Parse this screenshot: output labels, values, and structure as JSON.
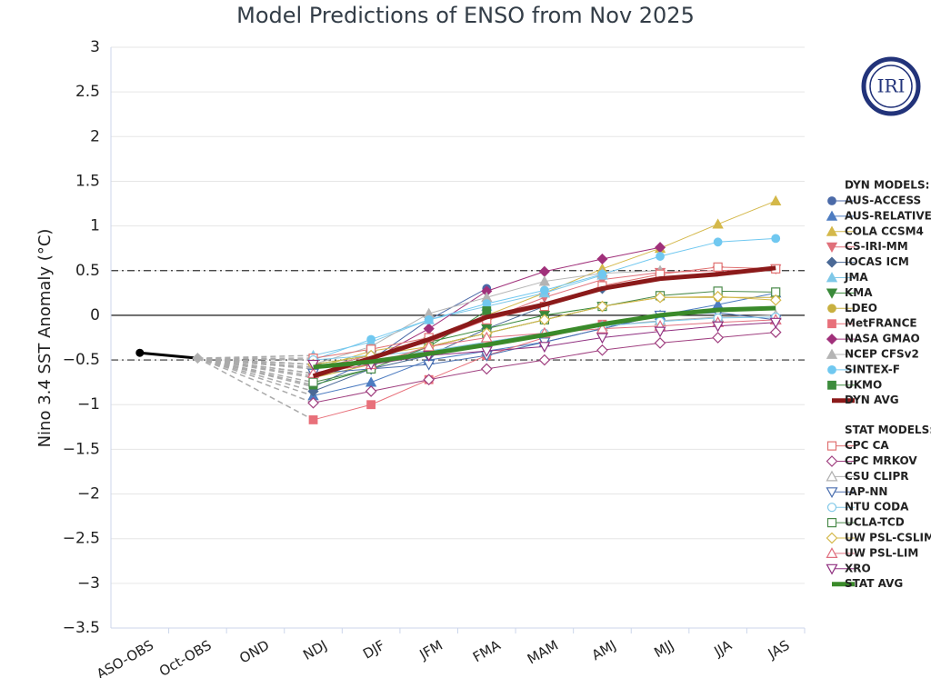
{
  "chart_data": {
    "type": "line",
    "title": "Model Predictions of ENSO from Nov 2025",
    "y_label": "Nino 3.4 SST Anomaly (°C)",
    "logo_text": "IRI",
    "categories": [
      "ASO-OBS",
      "Oct-OBS",
      "OND",
      "NDJ",
      "DJF",
      "JFM",
      "FMA",
      "MAM",
      "AMJ",
      "MJJ",
      "JJA",
      "JAS"
    ],
    "ylim": [
      -3.5,
      3
    ],
    "yticks": [
      3,
      2.5,
      2,
      1.5,
      1,
      0.5,
      0,
      {
        "value": -0.5,
        "label": "−0.5"
      },
      {
        "value": -1,
        "label": "−1"
      },
      {
        "value": -1.5,
        "label": "−1.5"
      },
      {
        "value": -2,
        "label": "−2"
      },
      {
        "value": -2.5,
        "label": "−2.5"
      },
      {
        "value": -3,
        "label": "−3"
      },
      {
        "value": -3.5,
        "label": "−3.5"
      }
    ],
    "grid": true,
    "reference_lines": [
      0.5,
      -0.5
    ],
    "legend_position": "right",
    "observed": {
      "color": "#000000",
      "values": [
        -0.42,
        -0.48,
        null,
        null,
        null,
        null,
        null,
        null,
        null,
        null,
        null,
        null
      ]
    },
    "groups": [
      {
        "title": "DYN MODELS:",
        "series": [
          {
            "name": "AUS-ACCESS",
            "color": "#4b6aa8",
            "marker": "circle",
            "open": false,
            "values": [
              null,
              null,
              null,
              -0.8,
              -0.5,
              -0.05,
              0.3,
              null,
              null,
              null,
              null,
              null
            ]
          },
          {
            "name": "AUS-RELATIVE",
            "color": "#4d7cc1",
            "marker": "triangle",
            "open": false,
            "values": [
              null,
              null,
              null,
              -0.9,
              -0.75,
              -0.5,
              -0.4,
              -0.3,
              -0.15,
              0.0,
              0.12,
              0.25
            ]
          },
          {
            "name": "COLA CCSM4",
            "color": "#d4b84a",
            "marker": "triangle",
            "open": false,
            "values": [
              null,
              null,
              null,
              -0.6,
              -0.4,
              -0.3,
              0.0,
              0.25,
              0.52,
              0.75,
              1.02,
              1.28
            ]
          },
          {
            "name": "CS-IRI-MM",
            "color": "#e0707a",
            "marker": "triangle-down",
            "open": false,
            "values": [
              null,
              null,
              null,
              -0.6,
              -0.45,
              -0.3,
              -0.05,
              0.2,
              0.4,
              0.48,
              0.5,
              0.52
            ]
          },
          {
            "name": "IOCAS ICM",
            "color": "#4a6996",
            "marker": "diamond",
            "open": false,
            "values": [
              null,
              null,
              null,
              -0.85,
              -0.6,
              -0.45,
              -0.15,
              0.1,
              0.3,
              null,
              null,
              null
            ]
          },
          {
            "name": "JMA",
            "color": "#7fc8e8",
            "marker": "triangle",
            "open": false,
            "values": [
              null,
              null,
              null,
              -0.45,
              -0.3,
              -0.05,
              0.1,
              0.25,
              0.45,
              null,
              null,
              null
            ]
          },
          {
            "name": "KMA",
            "color": "#3a8a3a",
            "marker": "triangle-down",
            "open": false,
            "values": [
              null,
              null,
              null,
              -0.55,
              -0.45,
              -0.3,
              -0.15,
              0.0,
              0.1,
              null,
              null,
              null
            ]
          },
          {
            "name": "LDEO",
            "color": "#c8b040",
            "marker": "circle",
            "open": false,
            "values": [
              null,
              null,
              null,
              -0.7,
              -0.55,
              -0.35,
              -0.2,
              -0.05,
              0.1,
              0.2,
              0.2,
              0.2
            ]
          },
          {
            "name": "MetFRANCE",
            "color": "#e8707a",
            "marker": "square",
            "open": false,
            "values": [
              null,
              null,
              null,
              -1.17,
              -1.0,
              -0.72,
              -0.45,
              -0.25,
              -0.1,
              null,
              null,
              null
            ]
          },
          {
            "name": "NASA GMAO",
            "color": "#a0307a",
            "marker": "diamond",
            "open": false,
            "values": [
              null,
              null,
              null,
              -0.65,
              -0.5,
              -0.15,
              0.27,
              0.49,
              0.63,
              0.76,
              null,
              null
            ]
          },
          {
            "name": "NCEP CFSv2",
            "color": "#b4b4b4",
            "marker": "triangle",
            "open": false,
            "values": [
              null,
              null,
              null,
              -0.55,
              -0.35,
              0.02,
              0.2,
              0.38,
              0.47,
              0.5,
              null,
              null
            ]
          },
          {
            "name": "SINTEX-F",
            "color": "#70c8f0",
            "marker": "circle",
            "open": false,
            "values": [
              null,
              null,
              null,
              -0.5,
              -0.27,
              -0.05,
              0.13,
              0.28,
              0.46,
              0.66,
              0.82,
              0.86
            ]
          },
          {
            "name": "UKMO",
            "color": "#3c8c3c",
            "marker": "square",
            "open": false,
            "values": [
              null,
              null,
              null,
              -0.78,
              -0.6,
              -0.35,
              0.05,
              null,
              null,
              null,
              null,
              null
            ]
          },
          {
            "name": "DYN AVG",
            "color": "#8b1a1a",
            "marker": "none",
            "open": false,
            "values": [
              null,
              null,
              null,
              -0.68,
              -0.48,
              -0.27,
              -0.02,
              0.12,
              0.3,
              0.41,
              0.46,
              0.53
            ]
          }
        ]
      },
      {
        "title": "STAT MODELS:",
        "series": [
          {
            "name": "CPC CA",
            "color": "#e07070",
            "marker": "square",
            "open": true,
            "values": [
              null,
              null,
              null,
              -0.48,
              -0.38,
              -0.25,
              -0.05,
              0.1,
              0.33,
              0.46,
              0.54,
              0.52
            ]
          },
          {
            "name": "CPC MRKOV",
            "color": "#a04080",
            "marker": "diamond",
            "open": true,
            "values": [
              null,
              null,
              null,
              -0.98,
              -0.85,
              -0.72,
              -0.6,
              -0.5,
              -0.39,
              -0.31,
              -0.25,
              -0.19
            ]
          },
          {
            "name": "CSU CLIPR",
            "color": "#b0b0b0",
            "marker": "triangle",
            "open": true,
            "values": [
              null,
              null,
              null,
              -0.6,
              -0.5,
              -0.4,
              -0.3,
              -0.2,
              -0.12,
              -0.06,
              -0.02,
              0.0
            ]
          },
          {
            "name": "IAP-NN",
            "color": "#4a6fb0",
            "marker": "triangle-down",
            "open": true,
            "values": [
              null,
              null,
              null,
              -0.65,
              -0.6,
              -0.55,
              -0.45,
              -0.3,
              -0.15,
              0.0,
              0.03,
              -0.05
            ]
          },
          {
            "name": "NTU CODA",
            "color": "#80c8e8",
            "marker": "circle",
            "open": true,
            "values": [
              null,
              null,
              null,
              -0.5,
              -0.45,
              -0.4,
              -0.3,
              -0.2,
              -0.12,
              -0.07,
              -0.03,
              -0.02
            ]
          },
          {
            "name": "UCLA-TCD",
            "color": "#4a8a4a",
            "marker": "square",
            "open": true,
            "values": [
              null,
              null,
              null,
              -0.75,
              -0.6,
              -0.35,
              -0.2,
              -0.05,
              0.1,
              0.22,
              0.27,
              0.26
            ]
          },
          {
            "name": "UW PSL-CSLIM",
            "color": "#d4b84a",
            "marker": "diamond",
            "open": true,
            "values": [
              null,
              null,
              null,
              -0.55,
              -0.45,
              -0.35,
              -0.2,
              -0.05,
              0.1,
              0.2,
              0.21,
              0.17
            ]
          },
          {
            "name": "UW PSL-LIM",
            "color": "#e07080",
            "marker": "triangle",
            "open": true,
            "values": [
              null,
              null,
              null,
              -0.65,
              -0.55,
              -0.35,
              -0.25,
              -0.2,
              -0.15,
              -0.12,
              -0.08,
              -0.05
            ]
          },
          {
            "name": "XRO",
            "color": "#903080",
            "marker": "triangle-down",
            "open": true,
            "values": [
              null,
              null,
              null,
              -0.55,
              -0.55,
              -0.45,
              -0.4,
              -0.35,
              -0.25,
              -0.18,
              -0.12,
              -0.08
            ]
          },
          {
            "name": "STAT AVG",
            "color": "#3a8a2a",
            "marker": "none",
            "open": false,
            "values": [
              null,
              null,
              null,
              -0.58,
              -0.52,
              -0.43,
              -0.33,
              -0.22,
              -0.1,
              0.0,
              0.06,
              0.08
            ]
          }
        ]
      }
    ]
  }
}
